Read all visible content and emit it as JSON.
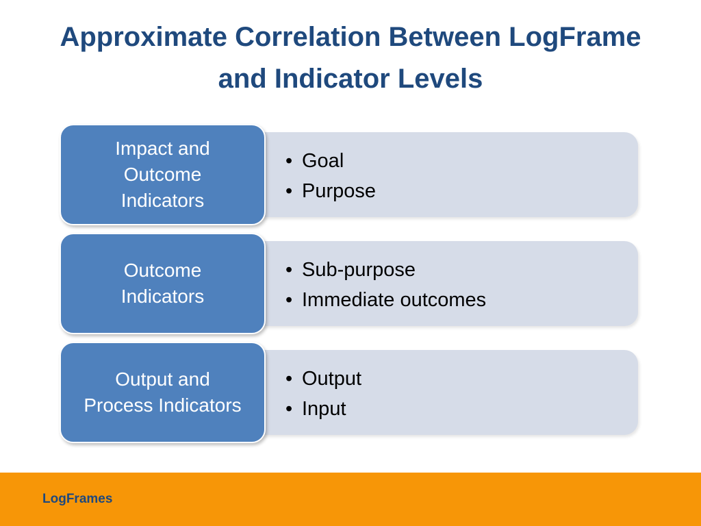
{
  "slide": {
    "title_line1": "Approximate Correlation Between LogFrame",
    "title_line2": "and Indicator Levels",
    "footer_label": "LogFrames",
    "colors": {
      "title": "#1f497d",
      "level_box": "#4f81bd",
      "detail_box": "#d6dce8",
      "footer": "#f79607"
    }
  },
  "rows": [
    {
      "level_lines": [
        "Impact and",
        "Outcome",
        "Indicators"
      ],
      "bullets": [
        "Goal",
        "Purpose"
      ]
    },
    {
      "level_lines": [
        "Outcome",
        "Indicators"
      ],
      "bullets": [
        "Sub-purpose",
        "Immediate outcomes"
      ]
    },
    {
      "level_lines": [
        "Output and",
        "Process Indicators"
      ],
      "bullets": [
        "Output",
        "Input"
      ]
    }
  ]
}
